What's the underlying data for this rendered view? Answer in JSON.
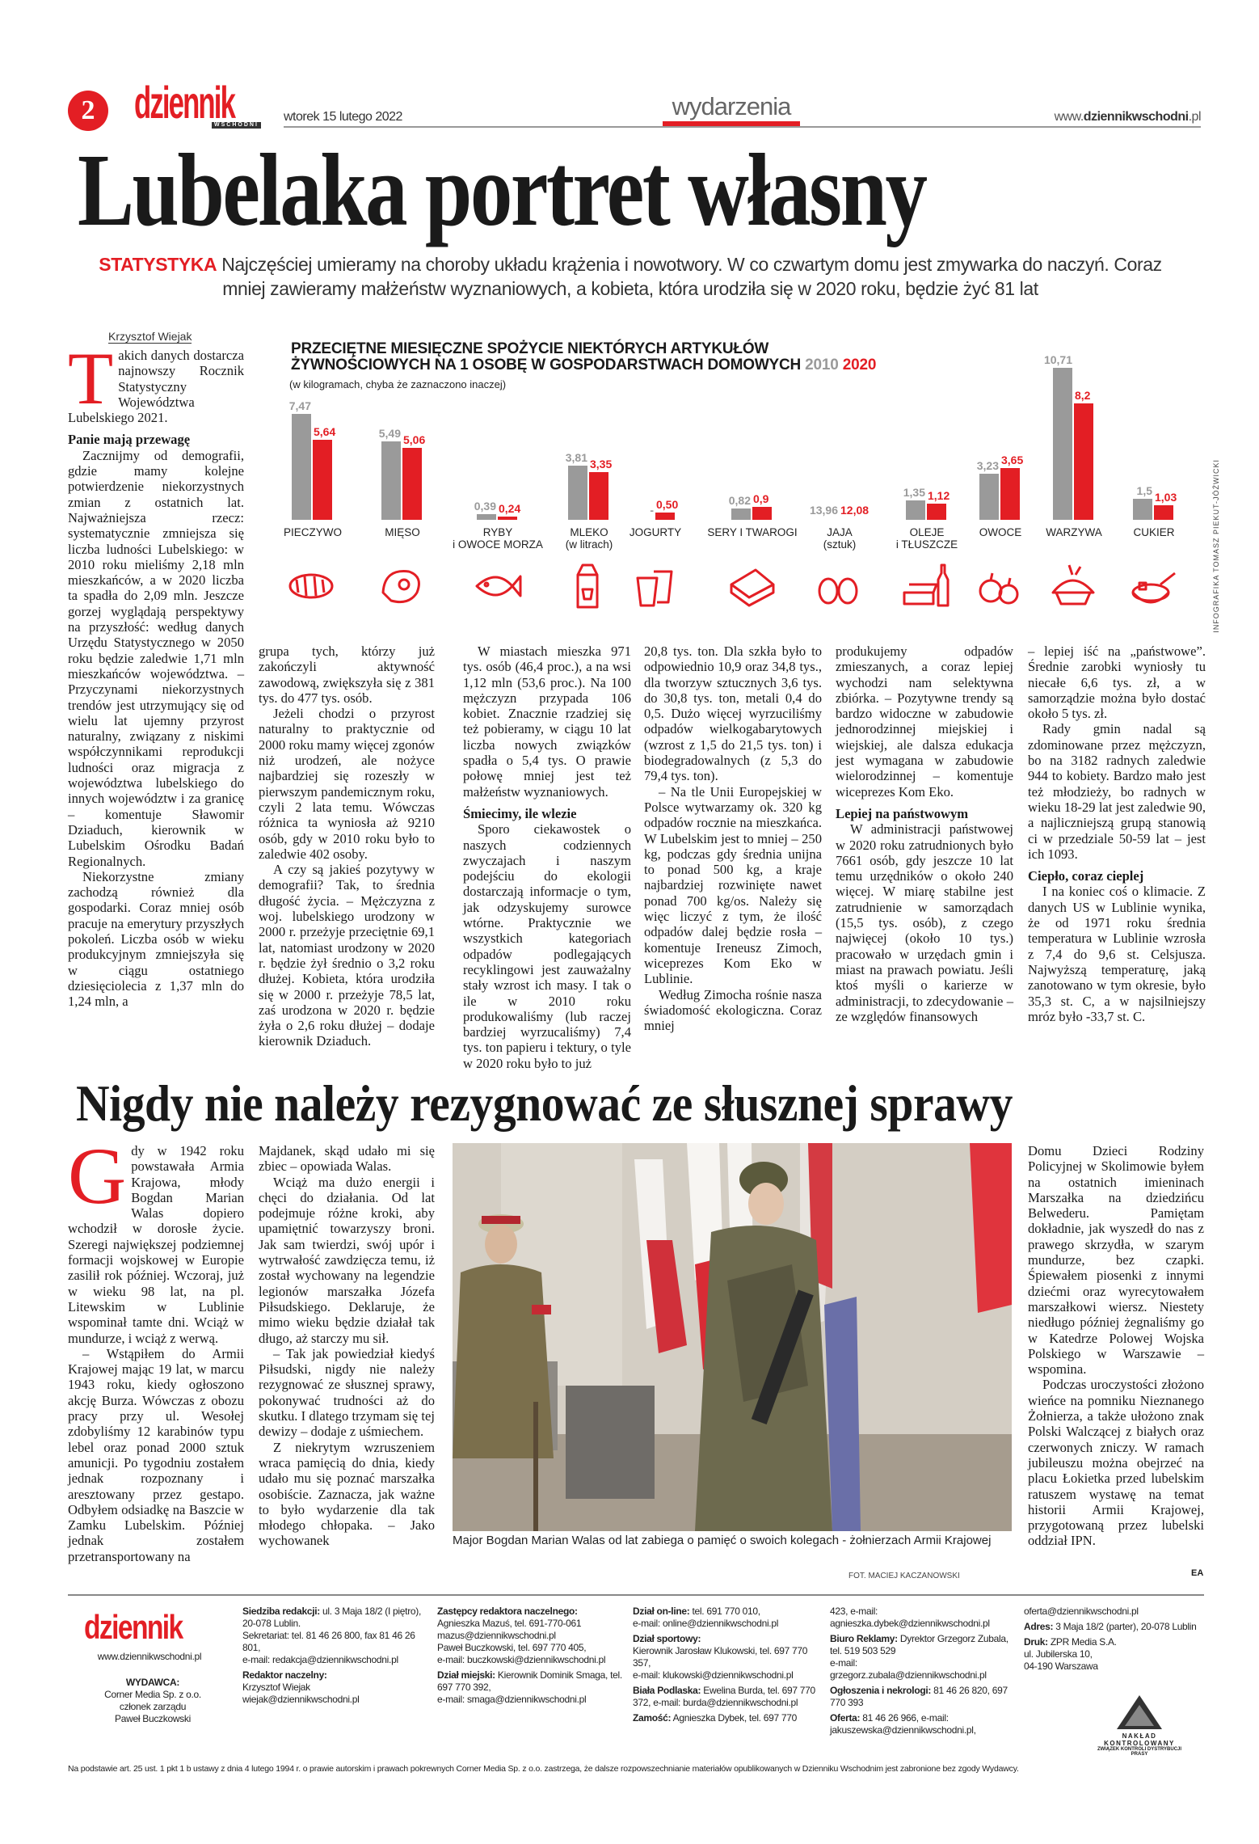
{
  "header": {
    "page_number": "2",
    "logo": "dziennik",
    "logo_sub": "WSCHODNI",
    "date": "wtorek 15 lutego 2022",
    "section": "wydarzenia",
    "url_prefix": "www.",
    "url_domain": "dziennikwschodni",
    "url_suffix": ".pl"
  },
  "article1": {
    "title": "Lubelaka portret własny",
    "kicker": "STATYSTYKA",
    "lead": "Najczęściej umieramy na choroby układu krążenia i nowotwory. W co czwartym domu jest zmywarka do naczyń. Coraz mniej zawieramy małżeństw wyznaniowych, a kobieta, która urodziła się w 2020 roku, będzie żyć 81 lat",
    "byline": "Krzysztof Wiejak",
    "drop_cap": "T",
    "columns": [
      [
        {
          "type": "p",
          "text": "akich danych dostarcza najnowszy Rocznik Statystyczny Województwa Lubelskiego 2021."
        },
        {
          "type": "h",
          "text": "Panie mają przewagę"
        },
        {
          "type": "p",
          "text": "Zacznijmy od demografii, gdzie mamy kolejne potwierdzenie niekorzystnych zmian z ostatnich lat. Najważniejsza rzecz: systematycznie zmniejsza się liczba ludności Lubelskiego: w 2010 roku mieliśmy 2,18 mln mieszkańców, a w 2020 liczba ta spadła do 2,09 mln. Jeszcze gorzej wyglądają perspektywy na przyszłość: według danych Urzędu Statystycznego w 2050 roku będzie zaledwie 1,71 mln mieszkańców województwa. – Przyczynami niekorzystnych trendów jest utrzymujący się od wielu lat ujemny przyrost naturalny, związany z niskimi współczynnikami reprodukcji ludności oraz migracja z województwa lubelskiego do innych województw i za granicę – komentuje Sławomir Dziaduch, kierownik w Lubelskim Ośrodku Badań Regionalnych."
        },
        {
          "type": "p",
          "text": "Niekorzystne zmiany zachodzą również dla gospodarki. Coraz mniej osób pracuje na emerytury przyszłych pokoleń. Liczba osób w wieku produkcyjnym zmniejszyła się w ciągu ostatniego dziesięciolecia z 1,37 mln do 1,24 mln, a"
        }
      ],
      [
        {
          "type": "p",
          "text": "grupa tych, którzy już zakończyli aktywność zawodową, zwiększyła się z 381 tys. do 477 tys. osób."
        },
        {
          "type": "p",
          "text": "Jeżeli chodzi o przyrost naturalny to praktycznie od 2000 roku mamy więcej zgonów niż urodzeń, ale nożyce najbardziej się rozeszły w pierwszym pandemicznym roku, czyli 2 lata temu. Wówczas różnica ta wyniosła aż 9210 osób, gdy w 2010 roku było to zaledwie 402 osoby."
        },
        {
          "type": "p",
          "text": "A czy są jakieś pozytywy w demografii? Tak, to średnia długość życia. – Mężczyzna z woj. lubelskiego urodzony w 2000 r. przeżyje przeciętnie 69,1 lat, natomiast urodzony w 2020 r. będzie żył średnio o 3,2 roku dłużej. Kobieta, która urodziła się w 2000 r. przeżyje 78,5 lat, zaś urodzona w 2020 r. będzie żyła o 2,6 roku dłużej – dodaje kierownik Dziaduch."
        }
      ],
      [
        {
          "type": "p",
          "text": "W miastach mieszka 971 tys. osób (46,4 proc.), a na wsi 1,12 mln (53,6 proc.). Na 100 mężczyzn przypada 106 kobiet. Znacznie rzadziej się też pobieramy, w ciągu 10 lat liczba nowych związków spadła o 5,4 tys. O prawie połowę mniej jest też małżeństw wyznaniowych."
        },
        {
          "type": "h",
          "text": "Śmiecimy, ile wlezie"
        },
        {
          "type": "p",
          "text": "Sporo ciekawostek o naszych codziennych zwyczajach i naszym podejściu do ekologii dostarczają informacje o tym, jak odzyskujemy surowce wtórne. Praktycznie we wszystkich kategoriach odpadów podlegających recyklingowi jest zauważalny stały wzrost ich masy. I tak o ile w 2010 roku produkowaliśmy (lub raczej bardziej wyrzucaliśmy) 7,4 tys. ton papieru i tektury, o tyle w 2020 roku było to już"
        }
      ],
      [
        {
          "type": "p",
          "text": "20,8 tys. ton. Dla szkła było to odpowiednio 10,9 oraz 34,8 tys., dla tworzyw sztucznych 3,6 tys. do 30,8 tys. ton, metali 0,4 do 0,5. Dużo więcej wyrzuciliśmy odpadów wielkogabarytowych (wzrost z 1,5 do 21,5 tys. ton) i biodegradowalnych (z 5,3 do 79,4 tys. ton)."
        },
        {
          "type": "p",
          "text": "– Na tle Unii Europejskiej w Polsce wytwarzamy ok. 320 kg odpadów rocznie na mieszkańca. W Lubelskim jest to mniej – 250 kg, podczas gdy średnia unijna to ponad 500 kg, a kraje najbardziej rozwinięte nawet ponad 700 kg/os. Należy się więc liczyć z tym, że ilość odpadów dalej będzie rosła – komentuje Ireneusz Zimoch, wiceprezes Kom Eko w Lublinie."
        },
        {
          "type": "p",
          "text": "Według Zimocha rośnie nasza świadomość ekologiczna. Coraz mniej"
        }
      ],
      [
        {
          "type": "p",
          "text": "produkujemy odpadów zmieszanych, a coraz lepiej wychodzi nam selektywna zbiórka. – Pozytywne trendy są bardzo widoczne w zabudowie jednorodzinnej miejskiej i wiejskiej, ale dalsza edukacja jest wymagana w zabudowie wielorodzinnej – komentuje wiceprezes Kom Eko."
        },
        {
          "type": "h",
          "text": "Lepiej na państwowym"
        },
        {
          "type": "p",
          "text": "W administracji państwowej w 2020 roku zatrudnionych było 7661 osób, gdy jeszcze 10 lat temu urzędników o około 240 więcej. W miarę stabilne jest zatrudnienie w samorządach (15,5 tys. osób), z czego najwięcej (około 10 tys.) pracowało w urzędach gmin i miast na prawach powiatu. Jeśli ktoś myśli o karierze w administracji, to zdecydowanie – ze względów finansowych"
        }
      ],
      [
        {
          "type": "p",
          "text": "– lepiej iść na „państwowe”. Średnie zarobki wyniosły tu niecałe 6,6 tys. zł, a w samorządzie można było dostać około 5 tys. zł."
        },
        {
          "type": "p",
          "text": "Rady gmin nadal są zdominowane przez mężczyzn, bo na 3182 radnych zaledwie 944 to kobiety. Bardzo mało jest też młodzieży, bo radnych w wieku 18-29 lat jest zaledwie 90, a najliczniejszą grupą stanowią ci w przedziale 50-59 lat – jest ich 1093."
        },
        {
          "type": "h",
          "text": "Ciepło, coraz cieplej"
        },
        {
          "type": "p",
          "text": "I na koniec coś o klimacie. Z danych US w Lublinie wynika, że od 1971 roku średnia temperatura w Lublinie wzrosła z 7,4 do 9,6 st. Celsjusza. Najwyższą temperaturę, jaką zanotowano w tym okresie, było 35,3 st. C, a w najsilniejszy mróz było -33,7 st. C."
        }
      ]
    ]
  },
  "chart_data": {
    "type": "bar",
    "title_line1": "PRZECIĘTNE MIESIĘCZNE SPOŻYCIE NIEKTÓRYCH ARTYKUŁÓW",
    "title_line2": "ŻYWNOŚCIOWYCH NA 1 OSOBĘ W GOSPODARSTWACH DOMOWYCH",
    "subtitle": "(w kilogramach, chyba że zaznaczono inaczej)",
    "credit": "INFOGRAFIKA TOMASZ PIEKUT-JÓŹWICKI",
    "categories": [
      "PIECZYWO",
      "MIĘSO",
      "RYBY\ni OWOCE MORZA",
      "MLEKO\n(w litrach)",
      "JOGURTY",
      "SERY I TWAROGI",
      "JAJA\n(sztuk)",
      "OLEJE\ni TŁUSZCZE",
      "OWOCE",
      "WARZYWA",
      "CUKIER"
    ],
    "icons": [
      "bread-icon",
      "meat-icon",
      "fish-icon",
      "milk-carton-icon",
      "yogurt-icon",
      "cheese-icon",
      "eggs-icon",
      "oil-butter-icon",
      "fruit-icon",
      "vegetables-icon",
      "sugar-icon"
    ],
    "series": [
      {
        "name": "2010",
        "color": "#9a9a9a",
        "values": [
          7.47,
          5.49,
          0.39,
          3.81,
          null,
          0.82,
          13.96,
          1.35,
          3.23,
          10.71,
          1.5
        ],
        "labels": [
          "7,47",
          "5,49",
          "0,39",
          "3,81",
          "-",
          "0,82",
          "13,96",
          "1,35",
          "3,23",
          "10,71",
          "1,5"
        ]
      },
      {
        "name": "2020",
        "color": "#e31e24",
        "values": [
          5.64,
          5.06,
          0.24,
          3.35,
          0.5,
          0.9,
          12.08,
          1.12,
          3.65,
          8.2,
          1.03
        ],
        "labels": [
          "5,64",
          "5,06",
          "0,24",
          "3,35",
          "0,50",
          "0,9",
          "12,08",
          "1,12",
          "3,65",
          "8,2",
          "1,03"
        ]
      }
    ],
    "unplotted_categories": [
      "JAJA\n(sztuk)"
    ],
    "grid": false,
    "legend": "in title"
  },
  "article2": {
    "title": "Nigdy nie należy rezygnować ze słusznej sprawy",
    "drop_cap": "G",
    "columns": [
      [
        {
          "type": "p",
          "text": "dy w 1942 roku powstawała Armia Krajowa, młody Bogdan Marian Walas dopiero wchodził w dorosłe życie. Szeregi największej podziemnej formacji wojskowej w Europie zasilił rok później. Wczoraj, już w wieku 98 lat, na pl. Litewskim w Lublinie wspominał tamte dni. Wciąż w mundurze, i wciąż z werwą."
        },
        {
          "type": "p",
          "text": "– Wstąpiłem do Armii Krajowej mając 19 lat, w marcu 1943 roku, kiedy ogłoszono akcję Burza. Wówczas z obozu pracy przy ul. Wesołej zdobyliśmy 12 karabinów typu lebel oraz ponad 2000 sztuk amunicji. Po tygodniu zostałem jednak rozpoznany i aresztowany przez gestapo. Odbyłem odsiadkę na Baszcie w Zamku Lubelskim. Później jednak zostałem przetransportowany na"
        }
      ],
      [
        {
          "type": "p",
          "text": "Majdanek, skąd udało mi się zbiec – opowiada Walas."
        },
        {
          "type": "p",
          "text": "Wciąż ma dużo energii i chęci do działania. Od lat podejmuje różne kroki, aby upamiętnić towarzyszy broni. Jak sam twierdzi, swój upór i wytrwałość zawdzięcza temu, iż został wychowany na legendzie legionów marszałka Józefa Piłsudskiego. Deklaruje, że mimo wieku będzie działał tak długo, aż starczy mu sił."
        },
        {
          "type": "p",
          "text": "– Tak jak powiedział kiedyś Piłsudski, nigdy nie należy rezygnować ze słusznej sprawy, pokonywać trudności aż do skutku. I dlatego trzymam się tej dewizy – dodaje z uśmiechem."
        },
        {
          "type": "p",
          "text": "Z niekrytym wzruszeniem wraca pamięcią do dnia, kiedy udało mu się poznać marszałka osobiście. Zaznacza, jak ważne to było wydarzenie dla tak młodego chłopaka. – Jako wychowanek"
        }
      ],
      [
        {
          "type": "p",
          "text": "Domu Dzieci Rodziny Policyjnej w Skolimowie byłem na ostatnich imieninach Marszałka na dziedzińcu Belwederu. Pamiętam dokładnie, jak wyszedł do nas z prawego skrzydła, w szarym mundurze, bez czapki. Śpiewałem piosenki z innymi dziećmi oraz wyrecytowałem marszałkowi wiersz. Niestety niedługo później żegnaliśmy go w Katedrze Polowej Wojska Polskiego w Warszawie – wspomina."
        },
        {
          "type": "p",
          "text": "Podczas uroczystości złożono wieńce na pomniku Nieznanego Żołnierza, a także ułożono znak Polski Walczącej z białych oraz czerwonych zniczy. W ramach jubileuszu można obejrzeć na placu Łokietka przed lubelskim ratuszem wystawę na temat historii Armii Krajowej, przygotowaną przez lubelski oddział IPN."
        }
      ]
    ],
    "caption": "Major Bogdan Marian Walas od lat zabiega o pamięć o swoich kolegach - żołnierzach Armii Krajowej",
    "photo_credit": "FOT. MACIEJ KACZANOWSKI",
    "signature": "EA"
  },
  "footer": {
    "logo": "dziennik",
    "url": "www.dziennikwschodni.pl",
    "columns": [
      [
        {
          "label": "WYDAWCA:",
          "text": ""
        },
        {
          "label": "",
          "text": "Corner Media Sp. z o.o."
        },
        {
          "label": "",
          "text": "członek zarządu"
        },
        {
          "label": "",
          "text": "Paweł Buczkowski"
        }
      ],
      [
        {
          "label": "Siedziba redakcji:",
          "text": "ul. 3 Maja 18/2 (I piętro), 20-078 Lublin."
        },
        {
          "label": "",
          "text": "Sekretariat: tel. 81 46 26 800, fax 81 46 26 801,"
        },
        {
          "label": "",
          "text": "e-mail: redakcja@dziennikwschodni.pl"
        },
        {
          "label": "Redaktor naczelny:",
          "text": ""
        },
        {
          "label": "",
          "text": "Krzysztof Wiejak"
        },
        {
          "label": "",
          "text": "wiejak@dziennikwschodni.pl"
        }
      ],
      [
        {
          "label": "Zastępcy redaktora naczelnego:",
          "text": ""
        },
        {
          "label": "",
          "text": "Agnieszka Mazuś, tel. 691-770-061"
        },
        {
          "label": "",
          "text": "mazus@dziennikwschodni.pl"
        },
        {
          "label": "",
          "text": "Paweł Buczkowski, tel. 697 770 405,"
        },
        {
          "label": "",
          "text": "e-mail: buczkowski@dziennikwschodni.pl"
        },
        {
          "label": "Dział miejski:",
          "text": "Kierownik Dominik Smaga, tel. 697 770 392,"
        },
        {
          "label": "",
          "text": "e-mail: smaga@dziennikwschodni.pl"
        }
      ],
      [
        {
          "label": "Dział on-line:",
          "text": "tel. 691 770 010,"
        },
        {
          "label": "",
          "text": "e-mail: online@dziennikwschodni.pl"
        },
        {
          "label": "Dział sportowy:",
          "text": ""
        },
        {
          "label": "",
          "text": "Kierownik Jarosław Klukowski, tel. 697 770 357,"
        },
        {
          "label": "",
          "text": "e-mail: klukowski@dziennikwschodni.pl"
        },
        {
          "label": "Biała Podlaska:",
          "text": "Ewelina Burda, tel. 697 770 372, e-mail: burda@dziennikwschodni.pl"
        },
        {
          "label": "Zamość:",
          "text": "Agnieszka Dybek, tel. 697 770"
        }
      ],
      [
        {
          "label": "",
          "text": "423, e-mail: agnieszka.dybek@dziennikwschodni.pl"
        },
        {
          "label": "Biuro Reklamy:",
          "text": "Dyrektor Grzegorz Zubala, tel. 519 503 529"
        },
        {
          "label": "",
          "text": "e-mail: grzegorz.zubala@dziennikwschodni.pl"
        },
        {
          "label": "Ogłoszenia i nekrologi:",
          "text": "81 46 26 820, 697 770 393"
        },
        {
          "label": "Oferta:",
          "text": "81 46 26 966, e-mail: jakuszewska@dziennikwschodni.pl,"
        }
      ],
      [
        {
          "label": "",
          "text": "oferta@dziennikwschodni.pl"
        },
        {
          "label": "Adres:",
          "text": "3 Maja 18/2 (parter), 20-078 Lublin"
        },
        {
          "label": "Druk:",
          "text": "ZPR Media S.A."
        },
        {
          "label": "",
          "text": "ul. Jubilerska 10,"
        },
        {
          "label": "",
          "text": "04-190 Warszawa"
        }
      ]
    ],
    "audit_badge": "NAKŁAD KONTROLOWANY",
    "audit_sub": "ZWIĄZEK KONTROLI DYSTRYBUCJI PRASY",
    "disclaimer": "Na podstawie art. 25 ust. 1 pkt 1 b ustawy z dnia 4 lutego 1994 r. o prawie autorskim i prawach pokrewnych Corner Media Sp. z o.o. zastrzega, że dalsze rozpowszechnianie materiałów opublikowanych w Dzienniku Wschodnim jest zabronione bez zgody Wydawcy."
  }
}
